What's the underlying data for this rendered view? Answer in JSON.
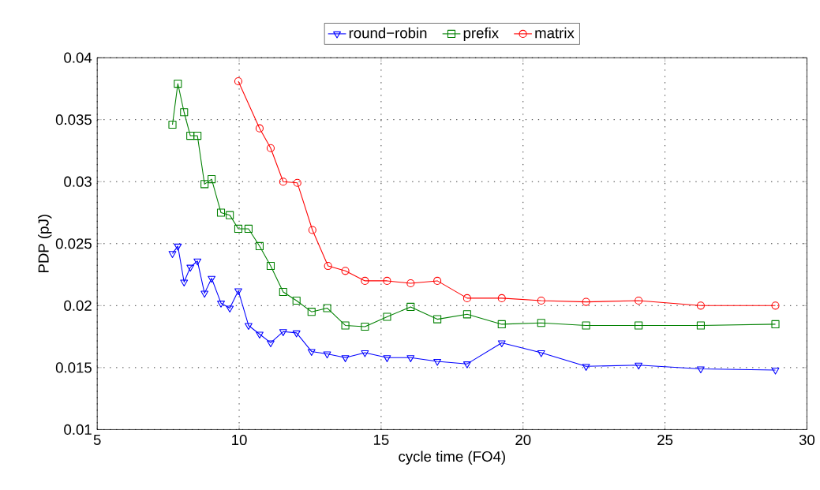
{
  "chart_data": {
    "type": "line",
    "xlabel": "cycle time (FO4)",
    "ylabel": "PDP (pJ)",
    "x": [
      7.65,
      7.84,
      8.06,
      8.28,
      8.53,
      8.78,
      9.03,
      9.36,
      9.67,
      9.97,
      10.33,
      10.72,
      11.11,
      11.55,
      12.02,
      12.55,
      13.1,
      13.74,
      14.43,
      15.21,
      16.04,
      16.98,
      18.03,
      19.25,
      20.64,
      22.22,
      24.07,
      26.26,
      28.89
    ],
    "series": [
      {
        "name": "round−robin",
        "color": "#0000ff",
        "marker": "triangle",
        "values": [
          0.0242,
          0.0248,
          0.0219,
          0.0231,
          0.0236,
          0.021,
          0.0222,
          0.0202,
          0.0198,
          0.0212,
          0.0184,
          0.0177,
          0.017,
          0.0179,
          0.0178,
          0.0163,
          0.0161,
          0.0158,
          0.0162,
          0.0158,
          0.0158,
          0.0155,
          0.0153,
          0.017,
          0.0162,
          0.0151,
          0.0152,
          0.0149,
          0.0148
        ]
      },
      {
        "name": "prefix",
        "color": "#008000",
        "marker": "square",
        "values": [
          0.0346,
          0.0379,
          0.0356,
          0.0337,
          0.0337,
          0.0298,
          0.0302,
          0.0275,
          0.0273,
          0.0262,
          0.0262,
          0.0248,
          0.0232,
          0.0211,
          0.0204,
          0.0195,
          0.0198,
          0.0184,
          0.0183,
          0.0191,
          0.0199,
          0.0189,
          0.0193,
          0.0185,
          0.0186,
          0.0184,
          0.0184,
          0.0184,
          0.0185
        ]
      },
      {
        "name": "matrix",
        "color": "#ff0000",
        "marker": "circle",
        "x": [
          9.97,
          10.72,
          11.11,
          11.55,
          12.05,
          12.58,
          13.13,
          13.74,
          14.43,
          15.21,
          16.04,
          16.98,
          18.03,
          19.25,
          20.64,
          22.22,
          24.07,
          26.26,
          28.89
        ],
        "values": [
          0.0381,
          0.0343,
          0.0327,
          0.03,
          0.0299,
          0.0261,
          0.0232,
          0.0228,
          0.022,
          0.022,
          0.0218,
          0.022,
          0.0206,
          0.0206,
          0.0204,
          0.0203,
          0.0204,
          0.02,
          0.02
        ]
      }
    ],
    "xlim": [
      5,
      30
    ],
    "xticks": [
      5,
      10,
      15,
      20,
      25,
      30
    ],
    "ylim": [
      0.01,
      0.04
    ],
    "yticks": [
      0.01,
      0.015,
      0.02,
      0.025,
      0.03,
      0.035,
      0.04
    ],
    "grid": true,
    "legend": "top",
    "line_style": "solid"
  }
}
